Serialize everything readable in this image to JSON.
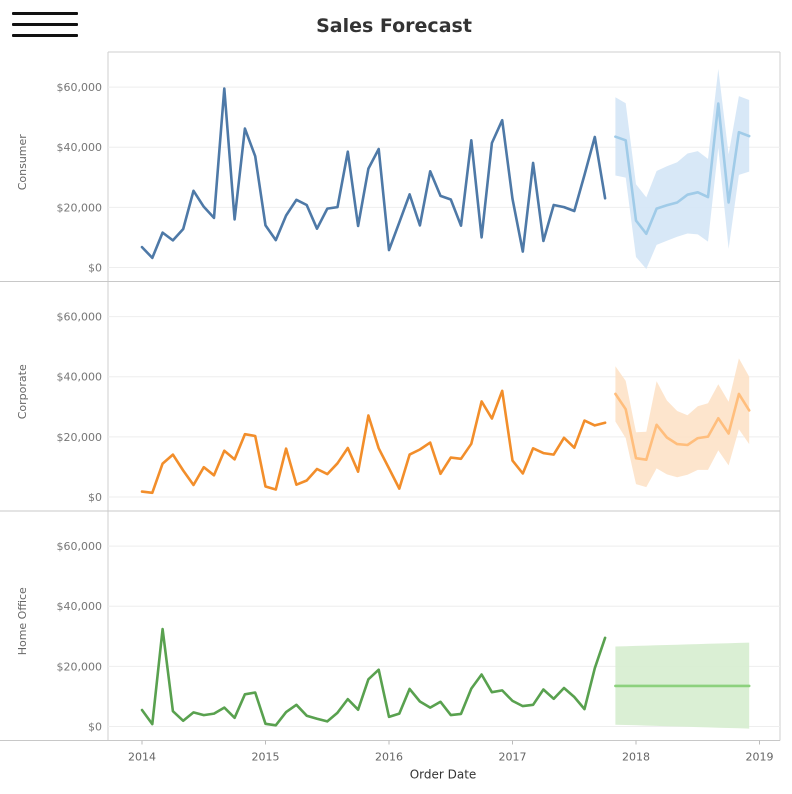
{
  "title": "Sales Forecast",
  "menu_icon": "hamburger-menu-icon",
  "chart_data": {
    "type": "line",
    "title": "Sales Forecast",
    "xlabel": "Order Date",
    "x_ticks": [
      "2014",
      "2015",
      "2016",
      "2017",
      "2018",
      "2019"
    ],
    "y_ticks": [
      "$0",
      "$20,000",
      "$40,000",
      "$60,000"
    ],
    "ylim": [
      0,
      70000
    ],
    "grid": true,
    "x_actual": [
      "2014-01",
      "2014-02",
      "2014-03",
      "2014-04",
      "2014-05",
      "2014-06",
      "2014-07",
      "2014-08",
      "2014-09",
      "2014-10",
      "2014-11",
      "2014-12",
      "2015-01",
      "2015-02",
      "2015-03",
      "2015-04",
      "2015-05",
      "2015-06",
      "2015-07",
      "2015-08",
      "2015-09",
      "2015-10",
      "2015-11",
      "2015-12",
      "2016-01",
      "2016-02",
      "2016-03",
      "2016-04",
      "2016-05",
      "2016-06",
      "2016-07",
      "2016-08",
      "2016-09",
      "2016-10",
      "2016-11",
      "2016-12",
      "2017-01",
      "2017-02",
      "2017-03",
      "2017-04",
      "2017-05",
      "2017-06",
      "2017-07",
      "2017-08",
      "2017-09",
      "2017-10"
    ],
    "x_forecast": [
      "2017-11",
      "2017-12",
      "2018-01",
      "2018-02",
      "2018-03",
      "2018-04",
      "2018-05",
      "2018-06",
      "2018-07",
      "2018-08",
      "2018-09",
      "2018-10",
      "2018-11",
      "2018-12"
    ],
    "panels": [
      {
        "segment": "Consumer",
        "actual_color": "#4e79a7",
        "forecast_color": "#a0cbe8",
        "band_color": "#d4e6f6",
        "actual": [
          6800,
          3200,
          11600,
          9000,
          12800,
          25500,
          20200,
          16500,
          59500,
          16000,
          46200,
          37000,
          14000,
          9100,
          17300,
          22500,
          20800,
          12900,
          19600,
          20100,
          38500,
          13800,
          32900,
          39400,
          5800,
          15000,
          24300,
          14000,
          32000,
          23800,
          22600,
          13900,
          42300,
          10000,
          41400,
          49000,
          22800,
          5300,
          34800,
          8800,
          20800,
          20100,
          18800,
          30800,
          43400,
          23000
        ],
        "forecast": [
          43500,
          42300,
          15600,
          11200,
          19600,
          20700,
          21600,
          24200,
          25000,
          23400,
          54500,
          21600,
          45000,
          43700
        ],
        "lower": [
          30600,
          29900,
          3500,
          -500,
          7500,
          8900,
          10200,
          11300,
          11000,
          8600,
          39800,
          6200,
          30800,
          31900
        ],
        "upper": [
          56600,
          54600,
          27700,
          23300,
          32100,
          33700,
          35000,
          37900,
          38700,
          36100,
          66000,
          37600,
          57000,
          55700
        ]
      },
      {
        "segment": "Corporate",
        "actual_color": "#f28e2b",
        "forecast_color": "#ffbe7d",
        "band_color": "#fde2c8",
        "actual": [
          1800,
          1400,
          11100,
          14100,
          8800,
          4000,
          9900,
          7200,
          15400,
          12500,
          20900,
          20300,
          3500,
          2500,
          16100,
          4100,
          5500,
          9300,
          7600,
          11200,
          16300,
          8400,
          27100,
          16200,
          9500,
          2800,
          14100,
          15800,
          18100,
          7700,
          13100,
          12700,
          17700,
          31800,
          26100,
          35300,
          12100,
          7800,
          16200,
          14600,
          14100,
          19700,
          16400,
          25400,
          23800,
          24700
        ],
        "forecast": [
          34300,
          29200,
          12900,
          12400,
          24000,
          19800,
          17600,
          17300,
          19600,
          20100,
          26200,
          21100,
          34300,
          28800
        ],
        "lower": [
          25100,
          19600,
          4300,
          3300,
          9500,
          7500,
          6600,
          7400,
          9000,
          9000,
          15500,
          10500,
          22500,
          17600
        ],
        "upper": [
          43500,
          38600,
          21500,
          21700,
          38500,
          32100,
          28600,
          27200,
          30200,
          31200,
          37500,
          31700,
          46100,
          40000
        ]
      },
      {
        "segment": "Home Office",
        "actual_color": "#59a14f",
        "forecast_color": "#8cd17d",
        "band_color": "#d6edcf",
        "actual": [
          5500,
          800,
          32400,
          5100,
          1900,
          4700,
          3800,
          4300,
          6300,
          2900,
          10700,
          11300,
          900,
          400,
          4800,
          7200,
          3600,
          2600,
          1700,
          4600,
          9100,
          5600,
          15700,
          18900,
          3200,
          4300,
          12500,
          8300,
          6300,
          8200,
          3800,
          4200,
          12600,
          17300,
          11400,
          12000,
          8500,
          6800,
          7200,
          12300,
          9200,
          12800,
          9800,
          5800,
          19400,
          29500
        ],
        "forecast": [
          13500,
          13500,
          13500,
          13500,
          13500,
          13500,
          13500,
          13500,
          13500,
          13500,
          13500,
          13500,
          13500,
          13500
        ],
        "lower": [
          600,
          500,
          400,
          300,
          200,
          100,
          0,
          -100,
          -200,
          -300,
          -400,
          -500,
          -600,
          -700
        ],
        "upper": [
          26600,
          26700,
          26800,
          26900,
          27000,
          27100,
          27200,
          27300,
          27400,
          27500,
          27600,
          27700,
          27800,
          27900
        ]
      }
    ]
  }
}
